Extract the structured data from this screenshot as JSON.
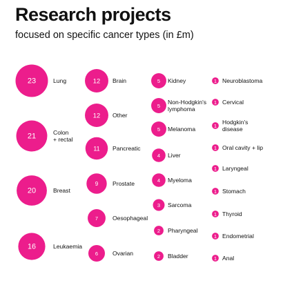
{
  "chart_data": {
    "type": "bubble",
    "title": "Research projects",
    "subtitle": "focused on specific cancer types (in £m)",
    "color": "#ec1d8c",
    "unit": "£m",
    "columns": [
      [
        {
          "label": [
            "Lung"
          ],
          "value": 23
        },
        {
          "label": [
            "Colon",
            "+ rectal"
          ],
          "value": 21
        },
        {
          "label": [
            "Breast"
          ],
          "value": 20
        },
        {
          "label": [
            "Leukaemia"
          ],
          "value": 16
        }
      ],
      [
        {
          "label": [
            "Brain"
          ],
          "value": 12
        },
        {
          "label": [
            "Other"
          ],
          "value": 12
        },
        {
          "label": [
            "Pancreatic"
          ],
          "value": 11
        },
        {
          "label": [
            "Prostate"
          ],
          "value": 9
        },
        {
          "label": [
            "Oesophageal"
          ],
          "value": 7
        },
        {
          "label": [
            "Ovarian"
          ],
          "value": 6
        }
      ],
      [
        {
          "label": [
            "Kidney"
          ],
          "value": 5
        },
        {
          "label": [
            "Non-Hodgkin's",
            "lymphoma"
          ],
          "value": 5
        },
        {
          "label": [
            "Melanoma"
          ],
          "value": 5
        },
        {
          "label": [
            "Liver"
          ],
          "value": 4
        },
        {
          "label": [
            "Myeloma"
          ],
          "value": 4
        },
        {
          "label": [
            "Sarcoma"
          ],
          "value": 3
        },
        {
          "label": [
            "Pharyngeal"
          ],
          "value": 2
        },
        {
          "label": [
            "Bladder"
          ],
          "value": 2
        }
      ],
      [
        {
          "label": [
            "Neuroblastoma"
          ],
          "value": 1
        },
        {
          "label": [
            "Cervical"
          ],
          "value": 1
        },
        {
          "label": [
            "Hodgkin's",
            "disease"
          ],
          "value": 1
        },
        {
          "label": [
            "Oral cavity + lip"
          ],
          "value": 1
        },
        {
          "label": [
            "Laryngeal"
          ],
          "value": 1
        },
        {
          "label": [
            "Stomach"
          ],
          "value": 1
        },
        {
          "label": [
            "Thyroid"
          ],
          "value": 1
        },
        {
          "label": [
            "Endometrial"
          ],
          "value": 1
        },
        {
          "label": [
            "Anal"
          ],
          "value": 1
        }
      ]
    ]
  }
}
